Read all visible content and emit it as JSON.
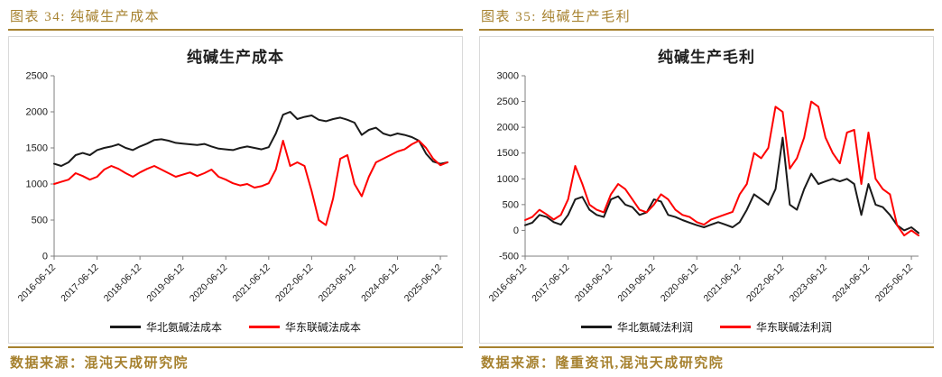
{
  "page": {
    "accent_color": "#a6812e",
    "panel_border_color": "#d9d9d9",
    "background": "#ffffff"
  },
  "captions": [
    "图表 34: 纯碱生产成本",
    "图表 35: 纯碱生产毛利"
  ],
  "sources": [
    "数据来源：混沌天成研究院",
    "数据来源：隆重资讯,混沌天成研究院"
  ],
  "chart_data": [
    {
      "type": "line",
      "title": "纯碱生产成本",
      "xlabel": "",
      "ylabel": "",
      "ylim": [
        0,
        2500
      ],
      "y_ticks": [
        0,
        500,
        1000,
        1500,
        2000,
        2500
      ],
      "x_ticks": [
        "2016-06-12",
        "2017-06-12",
        "2018-06-12",
        "2019-06-12",
        "2020-06-12",
        "2021-06-12",
        "2022-06-12",
        "2023-06-12",
        "2024-06-12",
        "2025-06-12"
      ],
      "x_tick_index": [
        0,
        6,
        12,
        18,
        24,
        30,
        36,
        42,
        48,
        54
      ],
      "grid": false,
      "legend_position": "bottom",
      "series": [
        {
          "name": "华北氨碱法成本",
          "color": "#1a1a1a",
          "values": [
            1280,
            1250,
            1300,
            1400,
            1430,
            1400,
            1470,
            1500,
            1520,
            1550,
            1500,
            1470,
            1520,
            1560,
            1610,
            1620,
            1600,
            1570,
            1560,
            1550,
            1540,
            1555,
            1520,
            1490,
            1480,
            1470,
            1500,
            1520,
            1500,
            1480,
            1510,
            1700,
            1960,
            2000,
            1900,
            1930,
            1950,
            1890,
            1870,
            1900,
            1920,
            1890,
            1850,
            1680,
            1750,
            1780,
            1700,
            1670,
            1700,
            1680,
            1650,
            1600,
            1420,
            1310,
            1280,
            1300
          ]
        },
        {
          "name": "华东联碱法成本",
          "color": "#fe0000",
          "values": [
            1000,
            1030,
            1060,
            1150,
            1110,
            1060,
            1100,
            1200,
            1250,
            1210,
            1150,
            1100,
            1160,
            1210,
            1250,
            1200,
            1150,
            1100,
            1130,
            1160,
            1110,
            1150,
            1200,
            1100,
            1060,
            1010,
            980,
            1000,
            950,
            970,
            1010,
            1200,
            1600,
            1250,
            1300,
            1250,
            900,
            500,
            430,
            800,
            1350,
            1400,
            1000,
            830,
            1100,
            1300,
            1350,
            1400,
            1450,
            1480,
            1550,
            1600,
            1500,
            1350,
            1260,
            1300
          ]
        }
      ]
    },
    {
      "type": "line",
      "title": "纯碱生产毛利",
      "xlabel": "",
      "ylabel": "",
      "ylim": [
        -500,
        3000
      ],
      "y_ticks": [
        -500,
        0,
        500,
        1000,
        1500,
        2000,
        2500,
        3000
      ],
      "x_ticks": [
        "2016-06-12",
        "2017-06-12",
        "2018-06-12",
        "2019-06-12",
        "2020-06-12",
        "2021-06-12",
        "2022-06-12",
        "2023-06-12",
        "2024-06-12",
        "2025-06-12"
      ],
      "x_tick_index": [
        0,
        6,
        12,
        18,
        24,
        30,
        36,
        42,
        48,
        54
      ],
      "grid": false,
      "legend_position": "bottom",
      "series": [
        {
          "name": "华北氨碱法利润",
          "color": "#1a1a1a",
          "values": [
            100,
            150,
            300,
            260,
            160,
            110,
            300,
            600,
            650,
            400,
            300,
            260,
            600,
            660,
            500,
            450,
            300,
            350,
            600,
            560,
            300,
            260,
            200,
            150,
            100,
            60,
            110,
            160,
            110,
            60,
            160,
            400,
            700,
            600,
            500,
            800,
            1800,
            500,
            400,
            800,
            1100,
            900,
            950,
            1000,
            950,
            1000,
            900,
            300,
            900,
            500,
            450,
            300,
            100,
            0,
            60,
            -50
          ]
        },
        {
          "name": "华东联碱法利润",
          "color": "#fe0000",
          "values": [
            200,
            260,
            400,
            310,
            210,
            300,
            600,
            1250,
            900,
            500,
            400,
            350,
            700,
            900,
            800,
            600,
            400,
            350,
            500,
            700,
            600,
            400,
            300,
            260,
            160,
            110,
            210,
            260,
            310,
            360,
            700,
            900,
            1500,
            1400,
            1600,
            2400,
            2300,
            1200,
            1400,
            1800,
            2500,
            2400,
            1800,
            1500,
            1300,
            1900,
            1950,
            900,
            1900,
            1000,
            800,
            700,
            100,
            -100,
            0,
            -100
          ]
        }
      ]
    }
  ]
}
